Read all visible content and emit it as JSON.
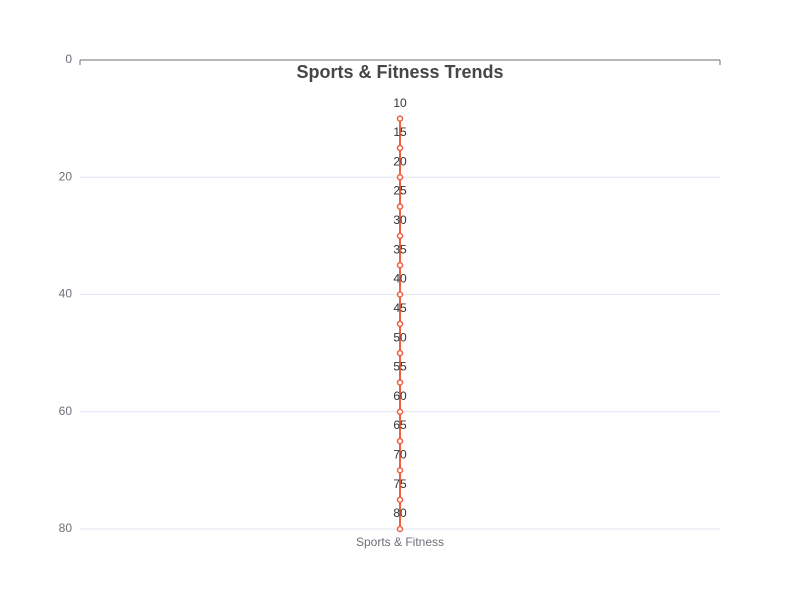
{
  "chart_data": {
    "type": "line",
    "title": "Sports & Fitness Trends",
    "category": "Sports & Fitness",
    "series": [
      {
        "color": "#ee6040",
        "values": [
          10,
          15,
          20,
          25,
          30,
          35,
          40,
          45,
          50,
          55,
          60,
          65,
          70,
          75,
          80
        ]
      }
    ],
    "ylim": [
      0,
      80
    ],
    "yticks": [
      0,
      20,
      40,
      60,
      80
    ],
    "y_inverse": true,
    "grid": true
  }
}
